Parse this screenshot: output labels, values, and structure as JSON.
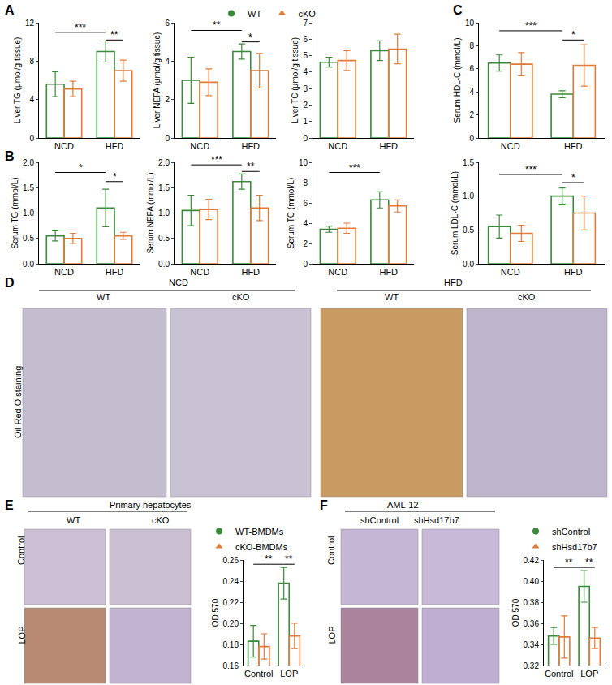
{
  "chart_data": [
    {
      "type": "bar",
      "categories": [
        "NCD",
        "HFD"
      ],
      "y_label": "Liver TG (μmol/g tissue)",
      "ylim": [
        0,
        12
      ],
      "yticks": [
        0,
        4,
        8,
        12
      ],
      "grid": false,
      "series": [
        {
          "name": "WT",
          "color": "#3a8a3a",
          "marker": "circle",
          "values": [
            5.6,
            9.0
          ],
          "errors": [
            1.3,
            1.1
          ]
        },
        {
          "name": "cKO",
          "color": "#e07b39",
          "marker": "triangle-up",
          "values": [
            5.1,
            7.0
          ],
          "errors": [
            0.8,
            1.1
          ]
        }
      ],
      "significance": [
        {
          "from": [
            0,
            0
          ],
          "to": [
            1,
            0
          ],
          "y": 11.0,
          "text": "***"
        },
        {
          "from": [
            1,
            0
          ],
          "to": [
            1,
            1
          ],
          "y": 10.2,
          "text": "**"
        }
      ]
    },
    {
      "type": "bar",
      "categories": [
        "NCD",
        "HFD"
      ],
      "y_label": "Liver NEFA (μmol/g tissue)",
      "ylim": [
        0,
        6
      ],
      "yticks": [
        0,
        2,
        4,
        6
      ],
      "grid": false,
      "legend": "top",
      "series": [
        {
          "name": "WT",
          "color": "#3a8a3a",
          "marker": "circle",
          "values": [
            3.0,
            4.5
          ],
          "errors": [
            1.2,
            0.4
          ]
        },
        {
          "name": "cKO",
          "color": "#e07b39",
          "marker": "triangle-up",
          "values": [
            2.9,
            3.5
          ],
          "errors": [
            0.7,
            0.9
          ]
        }
      ],
      "significance": [
        {
          "from": [
            0,
            0
          ],
          "to": [
            1,
            0
          ],
          "y": 5.6,
          "text": "**"
        },
        {
          "from": [
            1,
            0
          ],
          "to": [
            1,
            1
          ],
          "y": 5.0,
          "text": "*"
        }
      ]
    },
    {
      "type": "bar",
      "categories": [
        "NCD",
        "HFD"
      ],
      "y_label": "Liver TC (μmol/g tissue)",
      "ylim": [
        0,
        7
      ],
      "yticks": [
        0,
        1,
        2,
        3,
        4,
        5,
        6,
        7
      ],
      "grid": false,
      "series": [
        {
          "name": "WT",
          "color": "#3a8a3a",
          "marker": "circle",
          "values": [
            4.6,
            5.3
          ],
          "errors": [
            0.3,
            0.6
          ]
        },
        {
          "name": "cKO",
          "color": "#e07b39",
          "marker": "triangle-up",
          "values": [
            4.7,
            5.4
          ],
          "errors": [
            0.6,
            0.9
          ]
        }
      ],
      "significance": []
    },
    {
      "type": "bar",
      "categories": [
        "NCD",
        "HFD"
      ],
      "y_label": "Serum TG (mmol/L)",
      "ylim": [
        0,
        2
      ],
      "yticks": [
        {
          "value": 0,
          "label": "0.0"
        },
        0.5,
        {
          "value": 1,
          "label": "1.0"
        },
        1.5,
        {
          "value": 2,
          "label": "2.0"
        }
      ],
      "grid": false,
      "series": [
        {
          "name": "WT",
          "color": "#3a8a3a",
          "marker": "circle",
          "values": [
            0.55,
            1.1
          ],
          "errors": [
            0.1,
            0.37
          ]
        },
        {
          "name": "cKO",
          "color": "#e07b39",
          "marker": "triangle-up",
          "values": [
            0.5,
            0.55
          ],
          "errors": [
            0.1,
            0.07
          ]
        }
      ],
      "significance": [
        {
          "from": [
            0,
            0
          ],
          "to": [
            1,
            0
          ],
          "y": 1.8,
          "text": "*"
        },
        {
          "from": [
            1,
            0
          ],
          "to": [
            1,
            1
          ],
          "y": 1.62,
          "text": "*"
        }
      ]
    },
    {
      "type": "bar",
      "categories": [
        "NCD",
        "HFD"
      ],
      "y_label": "Serum NEFA (mmol/L)",
      "ylim": [
        0,
        2
      ],
      "yticks": [
        {
          "value": 0,
          "label": "0.0"
        },
        0.5,
        {
          "value": 1,
          "label": "1.0"
        },
        1.5,
        {
          "value": 2,
          "label": "2.0"
        }
      ],
      "grid": false,
      "series": [
        {
          "name": "WT",
          "color": "#3a8a3a",
          "marker": "circle",
          "values": [
            1.05,
            1.62
          ],
          "errors": [
            0.3,
            0.15
          ]
        },
        {
          "name": "cKO",
          "color": "#e07b39",
          "marker": "triangle-up",
          "values": [
            1.07,
            1.1
          ],
          "errors": [
            0.2,
            0.25
          ]
        }
      ],
      "significance": [
        {
          "from": [
            0,
            0
          ],
          "to": [
            1,
            0
          ],
          "y": 1.95,
          "text": "***"
        },
        {
          "from": [
            1,
            0
          ],
          "to": [
            1,
            1
          ],
          "y": 1.82,
          "text": "**"
        }
      ]
    },
    {
      "type": "bar",
      "categories": [
        "NCD",
        "HFD"
      ],
      "y_label": "Serum TC (mmol/L)",
      "ylim": [
        0,
        10
      ],
      "yticks": [
        0,
        2,
        4,
        6,
        8,
        10
      ],
      "grid": false,
      "series": [
        {
          "name": "WT",
          "color": "#3a8a3a",
          "marker": "circle",
          "values": [
            3.4,
            6.3
          ],
          "errors": [
            0.3,
            0.8
          ]
        },
        {
          "name": "cKO",
          "color": "#e07b39",
          "marker": "triangle-up",
          "values": [
            3.5,
            5.7
          ],
          "errors": [
            0.5,
            0.6
          ]
        }
      ],
      "significance": [
        {
          "from": [
            0,
            0
          ],
          "to": [
            1,
            0
          ],
          "y": 9.0,
          "text": "***"
        }
      ]
    },
    {
      "type": "bar",
      "categories": [
        "NCD",
        "HFD"
      ],
      "y_label": "Serum HDL-C (mmol/L)",
      "ylim": [
        0,
        10
      ],
      "yticks": [
        0,
        2,
        4,
        6,
        8,
        10
      ],
      "grid": false,
      "series": [
        {
          "name": "WT",
          "color": "#3a8a3a",
          "marker": "circle",
          "values": [
            6.5,
            3.8
          ],
          "errors": [
            0.7,
            0.3
          ]
        },
        {
          "name": "cKO",
          "color": "#e07b39",
          "marker": "triangle-up",
          "values": [
            6.4,
            6.3
          ],
          "errors": [
            1.0,
            1.8
          ]
        }
      ],
      "significance": [
        {
          "from": [
            0,
            0
          ],
          "to": [
            1,
            0
          ],
          "y": 9.3,
          "text": "***"
        },
        {
          "from": [
            1,
            0
          ],
          "to": [
            1,
            1
          ],
          "y": 8.5,
          "text": "*"
        }
      ]
    },
    {
      "type": "bar",
      "categories": [
        "NCD",
        "HFD"
      ],
      "y_label": "Serum LDL-C (mmol/L)",
      "ylim": [
        0,
        1.5
      ],
      "yticks": [
        {
          "value": 0,
          "label": "0.0"
        },
        0.5,
        {
          "value": 1,
          "label": "1.0"
        },
        1.5
      ],
      "grid": false,
      "series": [
        {
          "name": "WT",
          "color": "#3a8a3a",
          "marker": "circle",
          "values": [
            0.55,
            1.0
          ],
          "errors": [
            0.17,
            0.12
          ]
        },
        {
          "name": "cKO",
          "color": "#e07b39",
          "marker": "triangle-up",
          "values": [
            0.45,
            0.75
          ],
          "errors": [
            0.12,
            0.25
          ]
        }
      ],
      "significance": [
        {
          "from": [
            0,
            0
          ],
          "to": [
            1,
            0
          ],
          "y": 1.32,
          "text": "***"
        },
        {
          "from": [
            1,
            0
          ],
          "to": [
            1,
            1
          ],
          "y": 1.2,
          "text": "*"
        }
      ]
    },
    {
      "type": "bar",
      "categories": [
        "Control",
        "LOP"
      ],
      "y_label": "OD 570",
      "ylim": [
        0.16,
        0.26
      ],
      "yticks": [
        0.16,
        0.18,
        {
          "value": 0.2,
          "label": "0.20"
        },
        0.22,
        0.24,
        0.26
      ],
      "grid": false,
      "legend": "top left",
      "series": [
        {
          "name": "WT-BMDMs",
          "color": "#3a8a3a",
          "marker": "circle",
          "values": [
            0.183,
            0.238
          ],
          "errors": [
            0.015,
            0.015
          ]
        },
        {
          "name": "cKO-BMDMs",
          "color": "#e07b39",
          "marker": "triangle-up",
          "values": [
            0.178,
            0.188
          ],
          "errors": [
            0.012,
            0.012
          ]
        }
      ],
      "significance": [
        {
          "from": [
            0,
            0
          ],
          "to": [
            1,
            0
          ],
          "y": 0.256,
          "text": "**"
        },
        {
          "from": [
            1,
            0
          ],
          "to": [
            1,
            1
          ],
          "y": 0.256,
          "text": "**"
        }
      ]
    },
    {
      "type": "bar",
      "categories": [
        "Control",
        "LOP"
      ],
      "y_label": "OD 570",
      "ylim": [
        0.32,
        0.42
      ],
      "yticks": [
        0.32,
        0.34,
        0.36,
        0.38,
        {
          "value": 0.4,
          "label": "0.40"
        },
        0.42
      ],
      "grid": false,
      "legend": "top left",
      "series": [
        {
          "name": "shControl",
          "color": "#3a8a3a",
          "marker": "circle",
          "values": [
            0.348,
            0.395
          ],
          "errors": [
            0.008,
            0.015
          ]
        },
        {
          "name": "shHsd17b7",
          "color": "#e07b39",
          "marker": "triangle-up",
          "values": [
            0.347,
            0.346
          ],
          "errors": [
            0.02,
            0.01
          ]
        }
      ],
      "significance": [
        {
          "from": [
            0,
            0
          ],
          "to": [
            1,
            0
          ],
          "y": 0.413,
          "text": "**"
        },
        {
          "from": [
            1,
            0
          ],
          "to": [
            1,
            1
          ],
          "y": 0.413,
          "text": "**"
        }
      ]
    }
  ],
  "panel_labels": [
    "A",
    "B",
    "C",
    "D",
    "E",
    "F"
  ],
  "image_panels": [
    {
      "groups": [
        "NCD",
        "HFD"
      ],
      "columns": [
        "WT",
        "cKO",
        "WT",
        "cKO"
      ],
      "row_label": "Oil Red O staining",
      "colors": [
        "#c4bccf",
        "#c9c2d2",
        "#c99a62",
        "#bdb5cc"
      ]
    },
    {
      "title": "Primary hepatocytes",
      "columns": [
        "WT",
        "cKO"
      ],
      "rows": [
        "Control",
        "LOP"
      ],
      "colors": [
        "#cdbfd6",
        "#cbbfd4",
        "#b98a73",
        "#c1b3cf"
      ]
    },
    {
      "title": "AML-12",
      "columns": [
        "shControl",
        "shHsd17b7"
      ],
      "rows": [
        "Control",
        "LOP"
      ],
      "colors": [
        "#c6b6d6",
        "#c8b9d8",
        "#a9849c",
        "#bfaed2"
      ]
    }
  ]
}
